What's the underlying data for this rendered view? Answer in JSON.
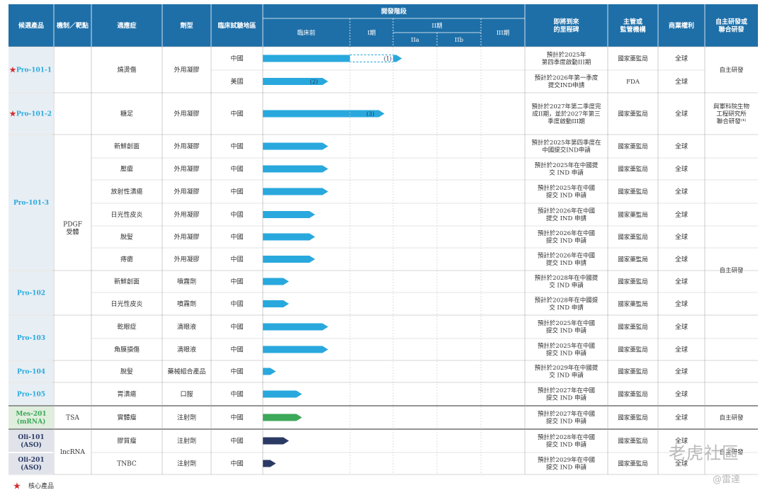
{
  "header": {
    "columns": [
      "候選產品",
      "機制／靶點",
      "適應症",
      "劑型",
      "臨床試驗地區"
    ],
    "dev_stage": "開發階段",
    "stages": [
      "臨床前",
      "I期",
      "II期",
      "IIa",
      "IIb",
      "III期"
    ],
    "milestone": "即將到來\n的里程碑",
    "authority": "主管或\n監管機構",
    "rights": "商業權利",
    "research": "自主研發或\n聯合研發"
  },
  "chart_data": {
    "type": "table",
    "stage_scale": {
      "preclinical": [
        0,
        1
      ],
      "phase1": [
        1,
        2
      ],
      "phase2a": [
        2,
        3
      ],
      "phase2b": [
        3,
        4
      ],
      "phase3": [
        4,
        5
      ]
    },
    "rows": [
      {
        "product": "Pro-101-1",
        "core": true,
        "mechanism": "PDGF受體",
        "indication": "燒燙傷",
        "form": "外用凝膠",
        "region": "中國",
        "bar_start": 0,
        "progress": 2.2,
        "color": "#29a8dd",
        "note": "(1)",
        "dashed_stage": "I期",
        "milestone": "預計於2025年\n第四季度啟動III期",
        "authority": "國家藥監局",
        "rights": "全球",
        "research": "自主研發"
      },
      {
        "product": "Pro-101-1",
        "mechanism": "PDGF受體",
        "indication": "燒燙傷",
        "form": "外用凝膠",
        "region": "美國",
        "progress": 0.75,
        "color": "#29a8dd",
        "note": "(2)",
        "milestone": "預計於2026年第一季度\n提交IND申請",
        "authority": "FDA",
        "rights": "全球",
        "research": "自主研發"
      },
      {
        "product": "Pro-101-2",
        "core": true,
        "mechanism": "PDGF受體",
        "indication": "糖足",
        "form": "外用凝膠",
        "region": "中國",
        "progress": 1.8,
        "color": "#29a8dd",
        "note": "(3)",
        "milestone": "預計於2027年第二季度完\n成II期，並於2027年第三\n季度啟動III期",
        "authority": "國家藥監局",
        "rights": "全球",
        "research": "與軍科院生物\n工程研究所\n聯合研發⁽⁴⁾"
      },
      {
        "product": "Pro-101-3",
        "mechanism": "PDGF受體",
        "indication": "新鮮創面",
        "form": "外用凝膠",
        "region": "中國",
        "progress": 0.75,
        "color": "#29a8dd",
        "milestone": "預計於2025年第四季度在\n中國提交IND申請",
        "authority": "國家藥監局",
        "rights": "全球",
        "research": "自主研發"
      },
      {
        "product": "Pro-101-3",
        "mechanism": "PDGF受體",
        "indication": "壓瘡",
        "form": "外用凝膠",
        "region": "中國",
        "progress": 0.75,
        "color": "#29a8dd",
        "milestone": "預計於2025年在中國提\n交 IND 申請",
        "authority": "國家藥監局",
        "rights": "全球",
        "research": "自主研發"
      },
      {
        "product": "Pro-101-3",
        "mechanism": "PDGF受體",
        "indication": "放射性潰瘍",
        "form": "外用凝膠",
        "region": "中國",
        "progress": 0.75,
        "color": "#29a8dd",
        "milestone": "預計於2025年在中國\n提交 IND 申請",
        "authority": "國家藥監局",
        "rights": "全球",
        "research": "自主研發"
      },
      {
        "product": "Pro-101-3",
        "mechanism": "PDGF受體",
        "indication": "日光性皮炎",
        "form": "外用凝膠",
        "region": "中國",
        "progress": 0.6,
        "color": "#29a8dd",
        "milestone": "預計於2026年在中國\n提交 IND 申請",
        "authority": "國家藥監局",
        "rights": "全球",
        "research": "自主研發"
      },
      {
        "product": "Pro-101-3",
        "mechanism": "PDGF受體",
        "indication": "脫髮",
        "form": "外用凝膠",
        "region": "中國",
        "progress": 0.6,
        "color": "#29a8dd",
        "milestone": "預計於2026年在中國\n提交 IND 申請",
        "authority": "國家藥監局",
        "rights": "全球",
        "research": "自主研發"
      },
      {
        "product": "Pro-101-3",
        "mechanism": "PDGF受體",
        "indication": "痔瘡",
        "form": "外用凝膠",
        "region": "中國",
        "progress": 0.6,
        "color": "#29a8dd",
        "milestone": "預計於2026年在中國\n提交 IND 申請",
        "authority": "國家藥監局",
        "rights": "全球",
        "research": "自主研發"
      },
      {
        "product": "Pro-102",
        "mechanism": "PDGF受體",
        "indication": "新鮮創面",
        "form": "噴霧劑",
        "region": "中國",
        "progress": 0.3,
        "color": "#29a8dd",
        "milestone": "預計於2028年在中國提\n交 IND 申請",
        "authority": "國家藥監局",
        "rights": "全球",
        "research": "自主研發"
      },
      {
        "product": "Pro-102",
        "mechanism": "PDGF受體",
        "indication": "日光性皮炎",
        "form": "噴霧劑",
        "region": "中國",
        "progress": 0.3,
        "color": "#29a8dd",
        "milestone": "預計於2028年在中國提\n交 IND 申請",
        "authority": "國家藥監局",
        "rights": "全球",
        "research": "自主研發"
      },
      {
        "product": "Pro-103",
        "mechanism": "PDGF受體",
        "indication": "乾眼症",
        "form": "滴眼液",
        "region": "中國",
        "progress": 0.75,
        "color": "#29a8dd",
        "milestone": "預計於2025年在中國\n提交 IND 申請",
        "authority": "國家藥監局",
        "rights": "全球",
        "research": "自主研發"
      },
      {
        "product": "Pro-103",
        "mechanism": "PDGF受體",
        "indication": "角膜損傷",
        "form": "滴眼液",
        "region": "中國",
        "progress": 0.75,
        "color": "#29a8dd",
        "milestone": "預計於2025年在中國\n提交 IND 申請",
        "authority": "國家藥監局",
        "rights": "全球",
        "research": "自主研發"
      },
      {
        "product": "Pro-104",
        "mechanism": "PDGF受體",
        "indication": "脫髮",
        "form": "藥械組合產品",
        "region": "中國",
        "progress": 0.15,
        "color": "#29a8dd",
        "milestone": "預計於2029年在中國提\n交 IND 申請",
        "authority": "國家藥監局",
        "rights": "全球",
        "research": "自主研發"
      },
      {
        "product": "Pro-105",
        "mechanism": "PDGF受體",
        "indication": "胃潰瘍",
        "form": "口服",
        "region": "中國",
        "progress": 0.45,
        "color": "#29a8dd",
        "milestone": "預計於2027年在中國\n提交 IND 申請",
        "authority": "國家藥監局",
        "rights": "全球",
        "research": "自主研發"
      },
      {
        "product": "Mes-201 (mRNA)",
        "mechanism": "TSA",
        "indication": "實體瘤",
        "form": "注射劑",
        "region": "中國",
        "progress": 0.45,
        "color": "#3ca85a",
        "milestone": "預計於2027年在中國\n提交 IND 申請",
        "authority": "國家藥監局",
        "rights": "全球",
        "research": "自主研發"
      },
      {
        "product": "Oli-101 (ASO)",
        "mechanism": "lncRNA",
        "indication": "膠質瘤",
        "form": "注射劑",
        "region": "中國",
        "progress": 0.3,
        "color": "#2b3a63",
        "milestone": "預計於2028年在中國\n提交 IND 申請",
        "authority": "國家藥監局",
        "rights": "全球",
        "research": "自主研發"
      },
      {
        "product": "Oli-201 (ASO)",
        "mechanism": "lncRNA",
        "indication": "TNBC",
        "form": "注射劑",
        "region": "中國",
        "progress": 0.15,
        "color": "#2b3a63",
        "milestone": "預計於2029年在中國\n提交 IND 申請",
        "authority": "國家藥監局",
        "rights": "全球",
        "research": "自主研發"
      }
    ]
  },
  "products": [
    {
      "label": "Pro-101-1",
      "core": true,
      "color": "#29a8dd"
    },
    {
      "label": "Pro-101-2",
      "core": true,
      "color": "#29a8dd"
    },
    {
      "label": "Pro-101-3",
      "color": "#29a8dd"
    },
    {
      "label": "Pro-102",
      "color": "#29a8dd"
    },
    {
      "label": "Pro-103",
      "color": "#29a8dd"
    },
    {
      "label": "Pro-104",
      "color": "#29a8dd"
    },
    {
      "label": "Pro-105",
      "color": "#29a8dd"
    },
    {
      "label": "Mes-201\n(mRNA)",
      "color": "#3ca85a"
    },
    {
      "label": "Oli-101\n(ASO)",
      "color": "#2b3a63"
    },
    {
      "label": "Oli-201\n(ASO)",
      "color": "#2b3a63"
    }
  ],
  "mechanisms": [
    "PDGF\n受體",
    "TSA",
    "lncRNA"
  ],
  "research_groups": [
    "自主研發",
    "與軍科院生物\n工程研究所\n聯合研發⁽⁴⁾",
    "自主研發",
    "自主研發",
    "自主研發"
  ],
  "legend": {
    "label": "核心產品"
  },
  "watermark": {
    "brand": "老虎社區",
    "user": "@雷達"
  },
  "colors": {
    "header_bg": "#1e6fa8",
    "header_text": "#ffffff",
    "product_bg": "#e7eef4",
    "mrna_bg": "#dfeedd",
    "aso_bg": "#e0e3ea",
    "star": "#d32f2f"
  }
}
